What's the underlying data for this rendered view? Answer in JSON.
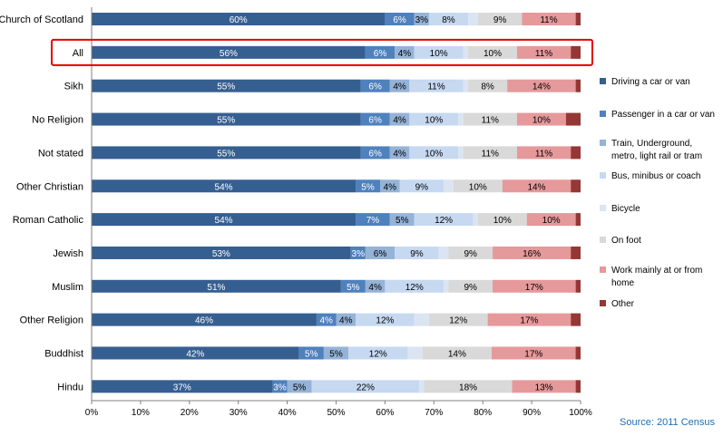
{
  "chart_data": {
    "type": "bar",
    "orientation": "horizontal",
    "stacked": "percent",
    "categories": [
      "Church of Scotland",
      "All",
      "Sikh",
      "No Religion",
      "Not stated",
      "Other Christian",
      "Roman Catholic",
      "Jewish",
      "Muslim",
      "Other Religion",
      "Buddhist",
      "Hindu"
    ],
    "highlighted_category": "All",
    "series": [
      {
        "name": "Driving a car or van",
        "color": "#365f91",
        "values": [
          60,
          56,
          55,
          55,
          55,
          54,
          54,
          53,
          51,
          46,
          42,
          37
        ],
        "labels": [
          "60%",
          "56%",
          "55%",
          "55%",
          "55%",
          "54%",
          "54%",
          "53%",
          "51%",
          "46%",
          "42%",
          "37%"
        ]
      },
      {
        "name": "Passenger in a car or van",
        "color": "#4f81bd",
        "values": [
          6,
          6,
          6,
          6,
          6,
          5,
          7,
          3,
          5,
          4,
          5,
          3
        ],
        "labels": [
          "6%",
          "6%",
          "6%",
          "6%",
          "6%",
          "5%",
          "7%",
          "3%",
          "5%",
          "4%",
          "5%",
          "3%"
        ]
      },
      {
        "name": "Train, Underground, metro, light rail or tram",
        "color": "#95b3d7",
        "values": [
          3,
          4,
          4,
          4,
          4,
          4,
          5,
          6,
          4,
          4,
          5,
          5
        ],
        "labels": [
          "3%",
          "4%",
          "4%",
          "4%",
          "4%",
          "4%",
          "5%",
          "6%",
          "4%",
          "4%",
          "5%",
          "5%"
        ]
      },
      {
        "name": "Bus, minibus or coach",
        "color": "#c6d9f1",
        "values": [
          8,
          10,
          11,
          10,
          10,
          9,
          12,
          9,
          12,
          12,
          12,
          22
        ],
        "labels": [
          "8%",
          "10%",
          "11%",
          "10%",
          "10%",
          "9%",
          "12%",
          "9%",
          "12%",
          "12%",
          "12%",
          "22%"
        ]
      },
      {
        "name": "Bicycle",
        "color": "#dbe5f1",
        "values": [
          2,
          1,
          1,
          1,
          1,
          2,
          1,
          2,
          1,
          3,
          3,
          1
        ],
        "labels": [
          "",
          "",
          "",
          "",
          "",
          "",
          "",
          "",
          "",
          "",
          "",
          ""
        ]
      },
      {
        "name": "On foot",
        "color": "#d9d9d9",
        "values": [
          9,
          10,
          8,
          11,
          11,
          10,
          10,
          9,
          9,
          12,
          14,
          18
        ],
        "labels": [
          "9%",
          "10%",
          "8%",
          "11%",
          "11%",
          "10%",
          "10%",
          "9%",
          "9%",
          "12%",
          "14%",
          "18%"
        ]
      },
      {
        "name": "Work mainly at or from home",
        "color": "#e6999b",
        "values": [
          11,
          11,
          14,
          10,
          11,
          14,
          10,
          16,
          17,
          17,
          17,
          13
        ],
        "labels": [
          "11%",
          "11%",
          "14%",
          "10%",
          "11%",
          "14%",
          "10%",
          "16%",
          "17%",
          "17%",
          "17%",
          "13%"
        ]
      },
      {
        "name": "Other",
        "color": "#953735",
        "values": [
          1,
          2,
          1,
          3,
          2,
          2,
          1,
          2,
          1,
          2,
          1,
          1
        ],
        "labels": [
          "",
          "",
          "",
          "",
          "",
          "",
          "",
          "",
          "",
          "",
          "",
          ""
        ]
      }
    ],
    "xlim": [
      0,
      100
    ],
    "x_ticks": [
      "0%",
      "10%",
      "20%",
      "30%",
      "40%",
      "50%",
      "60%",
      "70%",
      "80%",
      "90%",
      "100%"
    ],
    "legend_position": "right",
    "highlight_color": "#e60000",
    "source": "Source: 2011 Census",
    "source_color": "#1f6fb2"
  }
}
